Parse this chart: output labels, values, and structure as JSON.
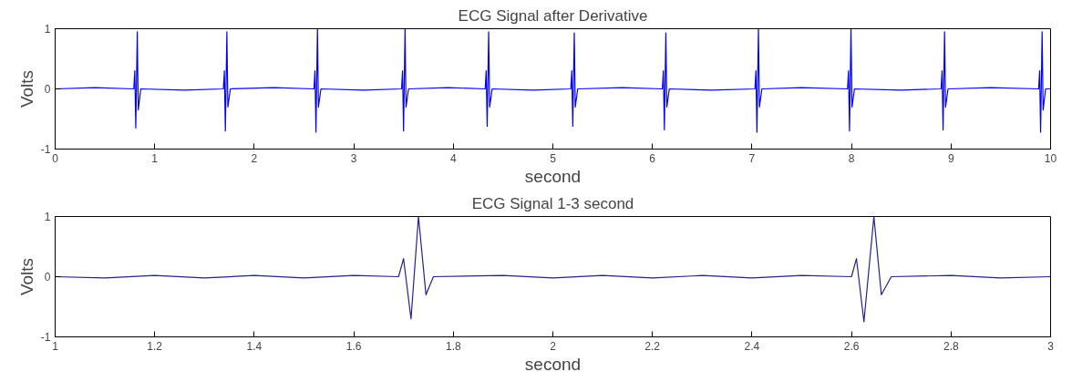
{
  "chart_data": [
    {
      "type": "line",
      "title": "ECG Signal after Derivative",
      "xlabel": "second",
      "ylabel": "Volts",
      "xlim": [
        0,
        10
      ],
      "ylim": [
        -1,
        1
      ],
      "xticks": [
        0,
        1,
        2,
        3,
        4,
        5,
        6,
        7,
        8,
        9,
        10
      ],
      "yticks": [
        -1,
        0,
        1
      ],
      "grid": false,
      "marker": "none",
      "line_style": "solid",
      "series": [
        {
          "color": "#0000ff",
          "x": [
            0,
            0.4,
            0.79,
            0.8,
            0.81,
            0.825,
            0.835,
            0.86,
            1.3,
            1.69,
            1.7,
            1.71,
            1.725,
            1.735,
            1.76,
            2.2,
            2.6,
            2.61,
            2.62,
            2.635,
            2.645,
            2.67,
            3.1,
            3.48,
            3.49,
            3.5,
            3.515,
            3.525,
            3.55,
            3.95,
            4.32,
            4.33,
            4.34,
            4.355,
            4.365,
            4.39,
            4.8,
            5.18,
            5.19,
            5.2,
            5.215,
            5.225,
            5.25,
            5.7,
            6.1,
            6.11,
            6.12,
            6.135,
            6.145,
            6.17,
            6.6,
            7.03,
            7.04,
            7.05,
            7.065,
            7.075,
            7.1,
            7.5,
            7.96,
            7.97,
            7.98,
            7.995,
            8.005,
            8.03,
            8.5,
            8.9,
            8.91,
            8.92,
            8.935,
            8.945,
            8.97,
            9.4,
            9.88,
            9.89,
            9.9,
            9.915,
            9.925,
            9.95,
            10
          ],
          "values": [
            0,
            0.02,
            0,
            0.3,
            -0.65,
            0.95,
            -0.35,
            0,
            -0.02,
            0,
            0.3,
            -0.7,
            0.95,
            -0.3,
            0,
            0.02,
            0,
            0.3,
            -0.72,
            1.0,
            -0.3,
            0,
            -0.02,
            0,
            0.3,
            -0.7,
            1.0,
            -0.3,
            0,
            0.02,
            0,
            0.3,
            -0.62,
            0.95,
            -0.3,
            0,
            -0.02,
            0,
            0.3,
            -0.62,
            0.93,
            -0.3,
            0,
            0.02,
            0,
            0.3,
            -0.68,
            0.93,
            -0.3,
            0,
            -0.02,
            0,
            0.3,
            -0.72,
            1.0,
            -0.3,
            0,
            0.02,
            0,
            0.3,
            -0.7,
            1.0,
            -0.3,
            0,
            -0.02,
            0,
            0.3,
            -0.68,
            0.95,
            -0.3,
            0,
            0.02,
            0,
            0.3,
            -0.72,
            0.95,
            -0.35,
            0,
            0
          ]
        }
      ]
    },
    {
      "type": "line",
      "title": "ECG Signal 1-3 second",
      "xlabel": "second",
      "ylabel": "Volts",
      "xlim": [
        1,
        3
      ],
      "ylim": [
        -1,
        1
      ],
      "xticks": [
        1,
        1.2,
        1.4,
        1.6,
        1.8,
        2,
        2.2,
        2.4,
        2.6,
        2.8,
        3
      ],
      "yticks": [
        -1,
        0,
        1
      ],
      "grid": false,
      "marker": "none",
      "line_style": "solid",
      "series": [
        {
          "color": "#22228a",
          "x": [
            1,
            1.1,
            1.2,
            1.3,
            1.4,
            1.5,
            1.6,
            1.69,
            1.7,
            1.715,
            1.73,
            1.745,
            1.76,
            1.9,
            2.0,
            2.1,
            2.2,
            2.3,
            2.4,
            2.5,
            2.6,
            2.61,
            2.625,
            2.645,
            2.66,
            2.68,
            2.8,
            2.9,
            3
          ],
          "values": [
            0,
            -0.02,
            0.02,
            -0.02,
            0.02,
            -0.02,
            0.02,
            0,
            0.3,
            -0.7,
            1.0,
            -0.3,
            0,
            0.02,
            -0.02,
            0.02,
            -0.02,
            0.02,
            -0.02,
            0.02,
            0,
            0.3,
            -0.75,
            1.0,
            -0.3,
            0,
            0.02,
            -0.02,
            0
          ]
        }
      ]
    }
  ]
}
